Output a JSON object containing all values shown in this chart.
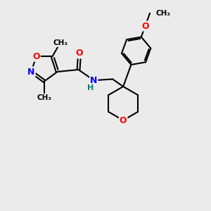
{
  "bg_color": "#ebebeb",
  "line_color": "#000000",
  "bond_width": 1.5,
  "atom_colors": {
    "O": "#ff0000",
    "N": "#0000ff",
    "H": "#008080",
    "C": "#000000"
  },
  "font_size_atom": 9,
  "fig_w": 3.0,
  "fig_h": 3.0,
  "dpi": 100,
  "xlim": [
    0,
    10
  ],
  "ylim": [
    0,
    10
  ]
}
